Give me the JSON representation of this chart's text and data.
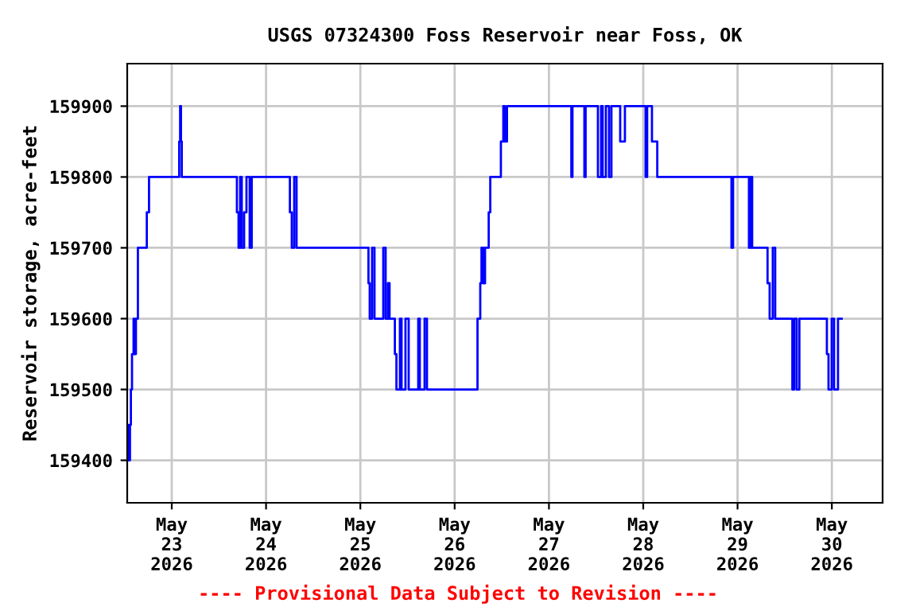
{
  "chart_data": {
    "type": "step",
    "title": "USGS 07324300 Foss Reservoir near Foss, OK",
    "ylabel": "Reservoir storage, acre-feet",
    "annotations": [
      "---- Provisional Data Subject to Revision ----"
    ],
    "x": [
      "2026-05-22T12:40",
      "2026-05-22T12:59",
      "2026-05-22T13:09",
      "2026-05-22T13:22",
      "2026-05-22T13:36",
      "2026-05-22T13:53",
      "2026-05-22T14:17",
      "2026-05-22T14:29",
      "2026-05-22T14:53",
      "2026-05-22T15:23",
      "2026-05-22T17:39",
      "2026-05-22T18:13",
      "2026-05-23T01:54",
      "2026-05-23T02:08",
      "2026-05-23T02:21",
      "2026-05-23T02:33",
      "2026-05-23T16:35",
      "2026-05-23T17:00",
      "2026-05-23T17:24",
      "2026-05-23T17:49",
      "2026-05-23T18:25",
      "2026-05-23T19:01",
      "2026-05-23T19:50",
      "2026-05-23T20:21",
      "2026-05-24T06:04",
      "2026-05-24T06:33",
      "2026-05-24T07:10",
      "2026-05-24T07:46",
      "2026-05-25T02:04",
      "2026-05-25T02:23",
      "2026-05-25T02:59",
      "2026-05-25T03:36",
      "2026-05-25T05:50",
      "2026-05-25T06:26",
      "2026-05-25T07:02",
      "2026-05-25T07:26",
      "2026-05-25T08:47",
      "2026-05-25T09:11",
      "2026-05-25T10:04",
      "2026-05-25T10:29",
      "2026-05-25T11:29",
      "2026-05-25T12:18",
      "2026-05-25T14:44",
      "2026-05-25T15:08",
      "2026-05-25T16:21",
      "2026-05-25T16:57",
      "2026-05-26T05:49",
      "2026-05-26T06:31",
      "2026-05-26T06:50",
      "2026-05-26T07:19",
      "2026-05-26T07:44",
      "2026-05-26T08:40",
      "2026-05-26T09:04",
      "2026-05-26T11:46",
      "2026-05-26T12:23",
      "2026-05-26T12:47",
      "2026-05-26T13:19",
      "2026-05-27T05:42",
      "2026-05-27T05:59",
      "2026-05-27T09:01",
      "2026-05-27T09:20",
      "2026-05-27T12:28",
      "2026-05-27T13:16",
      "2026-05-27T13:40",
      "2026-05-27T14:29",
      "2026-05-27T15:17",
      "2026-05-27T15:54",
      "2026-05-27T18:08",
      "2026-05-27T19:20",
      "2026-05-28T00:36",
      "2026-05-28T01:00",
      "2026-05-28T02:13",
      "2026-05-28T03:34",
      "2026-05-28T22:27",
      "2026-05-28T22:52",
      "2026-05-29T02:54",
      "2026-05-29T03:19",
      "2026-05-29T03:43",
      "2026-05-29T07:38",
      "2026-05-29T08:10",
      "2026-05-29T08:58",
      "2026-05-29T09:35",
      "2026-05-29T13:57",
      "2026-05-29T14:26",
      "2026-05-29T15:03",
      "2026-05-29T15:44",
      "2026-05-29T22:44",
      "2026-05-29T23:09",
      "2026-05-29T23:58",
      "2026-05-30T00:34",
      "2026-05-30T01:34",
      "2026-05-30T02:11",
      "2026-05-30T02:30"
    ],
    "series": [
      {
        "color": "#0000ff",
        "values": [
          159400,
          159450,
          159400,
          159450,
          159500,
          159550,
          159600,
          159550,
          159600,
          159700,
          159750,
          159800,
          159850,
          159900,
          159850,
          159800,
          159750,
          159700,
          159800,
          159700,
          159750,
          159800,
          159700,
          159800,
          159750,
          159700,
          159800,
          159700,
          159650,
          159600,
          159700,
          159600,
          159700,
          159600,
          159650,
          159600,
          159550,
          159500,
          159600,
          159500,
          159600,
          159500,
          159600,
          159500,
          159600,
          159500,
          159600,
          159650,
          159700,
          159650,
          159700,
          159750,
          159800,
          159850,
          159900,
          159850,
          159900,
          159800,
          159900,
          159800,
          159900,
          159800,
          159900,
          159800,
          159900,
          159800,
          159900,
          159850,
          159900,
          159800,
          159900,
          159850,
          159800,
          159700,
          159800,
          159700,
          159800,
          159700,
          159650,
          159600,
          159700,
          159600,
          159500,
          159600,
          159500,
          159600,
          159550,
          159500,
          159600,
          159500,
          159600,
          159600,
          159600
        ]
      }
    ],
    "xlim": [
      "2026-05-22T12:40",
      "2026-05-30T12:55"
    ],
    "xticks": [
      {
        "value": "2026-05-23",
        "label": "May\n23\n2026"
      },
      {
        "value": "2026-05-24",
        "label": "May\n24\n2026"
      },
      {
        "value": "2026-05-25",
        "label": "May\n25\n2026"
      },
      {
        "value": "2026-05-26",
        "label": "May\n26\n2026"
      },
      {
        "value": "2026-05-27",
        "label": "May\n27\n2026"
      },
      {
        "value": "2026-05-28",
        "label": "May\n28\n2026"
      },
      {
        "value": "2026-05-29",
        "label": "May\n29\n2026"
      },
      {
        "value": "2026-05-30",
        "label": "May\n30\n2026"
      }
    ],
    "ylim": [
      159340,
      159960
    ],
    "yticks": [
      159400,
      159500,
      159600,
      159700,
      159800,
      159900
    ],
    "grid": true,
    "marker": "none",
    "line_style": "solid"
  }
}
